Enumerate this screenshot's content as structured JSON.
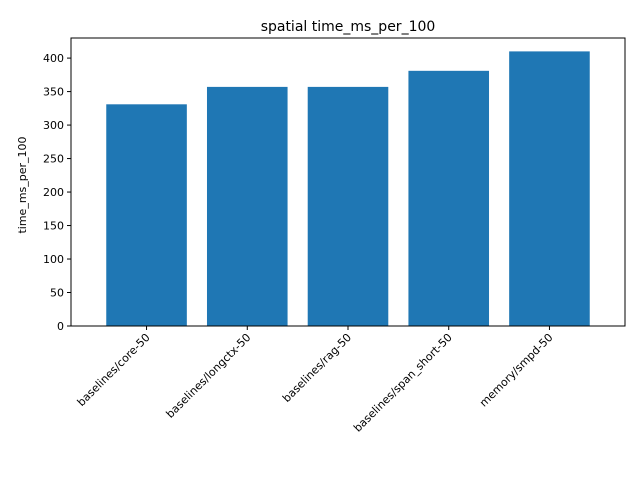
{
  "chart_data": {
    "type": "bar",
    "title": "spatial time_ms_per_100",
    "xlabel": "",
    "ylabel": "time_ms_per_100",
    "categories": [
      "baselines/core-50",
      "baselines/longctx-50",
      "baselines/rag-50",
      "baselines/span_short-50",
      "memory/smpd-50"
    ],
    "values": [
      331,
      357,
      357,
      381,
      410
    ],
    "ylim": [
      0,
      430
    ],
    "yticks": [
      0,
      50,
      100,
      150,
      200,
      250,
      300,
      350,
      400
    ],
    "bar_color": "#1f77b4",
    "grid": false,
    "legend": "none"
  }
}
